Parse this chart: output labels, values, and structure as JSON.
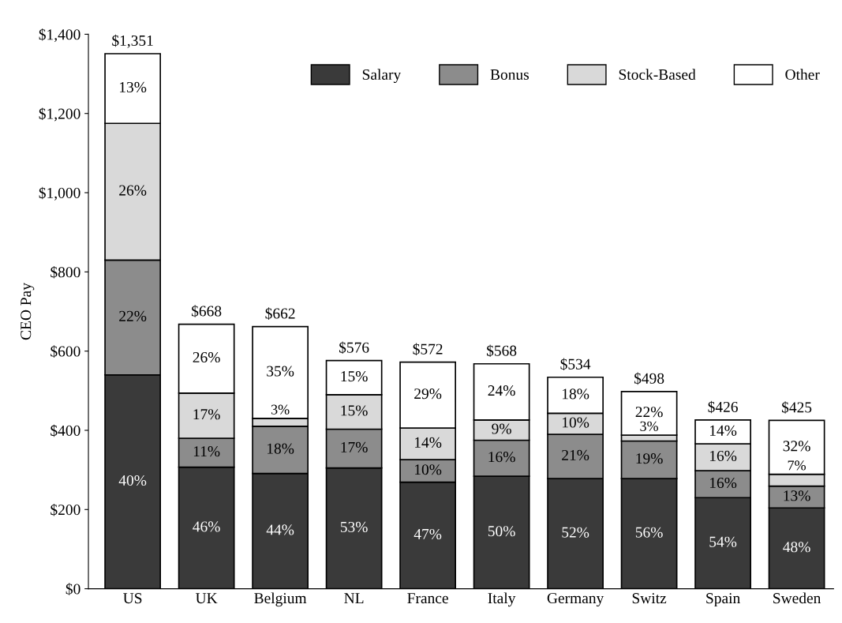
{
  "chart_data": {
    "type": "bar",
    "stacked": true,
    "ylabel": "CEO Pay",
    "categories": [
      "US",
      "UK",
      "Belgium",
      "NL",
      "France",
      "Italy",
      "Germany",
      "Switz",
      "Spain",
      "Sweden"
    ],
    "series": [
      {
        "name": "Salary",
        "color": "#3a3a3a",
        "values": [
          540,
          307,
          291,
          305,
          269,
          284,
          278,
          278,
          230,
          204
        ]
      },
      {
        "name": "Bonus",
        "color": "#8c8c8c",
        "values": [
          290,
          73,
          119,
          98,
          57,
          91,
          112,
          95,
          68,
          55
        ]
      },
      {
        "name": "Stock-Based",
        "color": "#d9d9d9",
        "values": [
          345,
          114,
          20,
          87,
          80,
          51,
          53,
          15,
          68,
          30
        ]
      },
      {
        "name": "Other",
        "color": "#ffffff",
        "values": [
          176,
          174,
          232,
          86,
          166,
          142,
          91,
          110,
          60,
          136
        ]
      }
    ],
    "annotations": [
      "40%",
      "22%",
      "26%",
      "13%",
      "46%",
      "11%",
      "17%",
      "26%",
      "44%",
      "18%",
      "3%",
      "35%",
      "53%",
      "17%",
      "15%",
      "15%",
      "47%",
      "10%",
      "14%",
      "29%",
      "50%",
      "16%",
      "9%",
      "24%",
      "52%",
      "21%",
      "10%",
      "18%",
      "56%",
      "19%",
      "3%",
      "22%",
      "54%",
      "16%",
      "16%",
      "14%",
      "48%",
      "13%",
      "7%",
      "32%"
    ],
    "totals": [
      "$1,351",
      "$668",
      "$662",
      "$576",
      "$572",
      "$568",
      "$534",
      "$498",
      "$426",
      "$425"
    ],
    "ylim": [
      0,
      1400
    ],
    "yticks": [
      {
        "value": 0,
        "label": "$0"
      },
      {
        "value": 200,
        "label": "$200"
      },
      {
        "value": 400,
        "label": "$400"
      },
      {
        "value": 600,
        "label": "$600"
      },
      {
        "value": 800,
        "label": "$800"
      },
      {
        "value": 1000,
        "label": "$1,000"
      },
      {
        "value": 1200,
        "label": "$1,200"
      },
      {
        "value": 1400,
        "label": "$1,400"
      }
    ],
    "grid": false,
    "legend": "top right"
  }
}
